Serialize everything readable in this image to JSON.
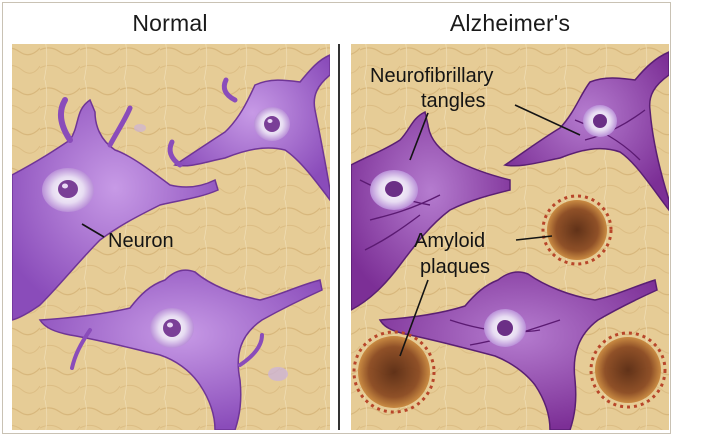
{
  "panels": {
    "normal": {
      "title": "Normal"
    },
    "alzheimers": {
      "title": "Alzheimer's"
    }
  },
  "labels": {
    "neuron": "Neuron",
    "tangles_line1": "Neurofibrillary",
    "tangles_line2": "tangles",
    "plaques_line1": "Amyloid",
    "plaques_line2": "plaques"
  },
  "colors": {
    "tissue": "#e7cf9a",
    "tissue_dark": "#c9a66a",
    "neuron": "#9a5bc6",
    "neuron_diseased": "#8a3ea0",
    "nucleus": "#d9c7ea",
    "plaque": "#7d3a1e"
  }
}
